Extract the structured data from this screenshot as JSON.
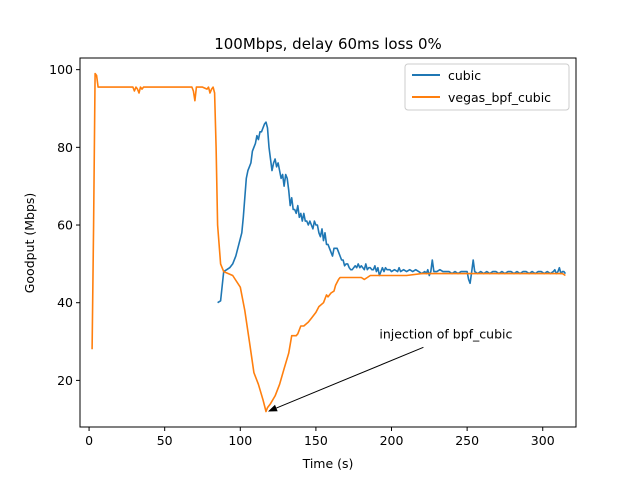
{
  "chart_data": {
    "type": "line",
    "title": "100Mbps, delay 60ms loss 0%",
    "xlabel": "Time (s)",
    "ylabel": "Goodput (Mbps)",
    "xlim": [
      -6,
      322
    ],
    "ylim": [
      8,
      103
    ],
    "xticks": [
      0,
      50,
      100,
      150,
      200,
      250,
      300
    ],
    "yticks": [
      20,
      40,
      60,
      80,
      100
    ],
    "grid": false,
    "legend_position": "upper right",
    "colors": {
      "cubic": "#1f77b4",
      "vegas_bpf_cubic": "#ff7f0e"
    },
    "series": [
      {
        "name": "cubic",
        "points": [
          [
            85,
            40
          ],
          [
            87,
            40.5
          ],
          [
            89,
            48
          ],
          [
            91,
            48.5
          ],
          [
            93,
            49
          ],
          [
            95,
            50
          ],
          [
            97,
            52
          ],
          [
            99,
            55
          ],
          [
            101,
            58
          ],
          [
            102,
            62
          ],
          [
            103,
            67
          ],
          [
            104,
            72
          ],
          [
            105,
            74
          ],
          [
            106,
            75
          ],
          [
            107,
            76
          ],
          [
            108,
            79
          ],
          [
            109,
            80
          ],
          [
            110,
            81
          ],
          [
            111,
            83
          ],
          [
            112,
            82
          ],
          [
            113,
            84
          ],
          [
            114,
            84
          ],
          [
            115,
            85
          ],
          [
            116,
            86
          ],
          [
            117,
            86.5
          ],
          [
            118,
            85
          ],
          [
            119,
            80
          ],
          [
            120,
            77
          ],
          [
            121,
            74
          ],
          [
            122,
            76
          ],
          [
            123,
            77
          ],
          [
            124,
            75
          ],
          [
            125,
            76
          ],
          [
            126,
            74
          ],
          [
            127,
            72
          ],
          [
            128,
            73
          ],
          [
            129,
            70
          ],
          [
            130,
            73
          ],
          [
            131,
            72
          ],
          [
            132,
            69
          ],
          [
            133,
            65
          ],
          [
            134,
            67
          ],
          [
            135,
            64
          ],
          [
            136,
            64
          ],
          [
            137,
            63
          ],
          [
            138,
            65
          ],
          [
            139,
            62
          ],
          [
            140,
            63
          ],
          [
            141,
            61
          ],
          [
            142,
            63
          ],
          [
            143,
            61
          ],
          [
            144,
            61
          ],
          [
            145,
            60
          ],
          [
            146,
            61
          ],
          [
            147,
            60
          ],
          [
            148,
            59
          ],
          [
            149,
            61
          ],
          [
            150,
            60
          ],
          [
            151,
            60
          ],
          [
            152,
            58
          ],
          [
            153,
            57
          ],
          [
            154,
            59
          ],
          [
            155,
            56
          ],
          [
            156,
            58
          ],
          [
            157,
            55
          ],
          [
            158,
            55
          ],
          [
            159,
            54
          ],
          [
            160,
            53
          ],
          [
            161,
            52
          ],
          [
            162,
            54
          ],
          [
            163,
            54
          ],
          [
            164,
            54
          ],
          [
            165,
            53
          ],
          [
            166,
            52
          ],
          [
            167,
            51
          ],
          [
            168,
            51
          ],
          [
            169,
            49.5
          ],
          [
            170,
            50
          ],
          [
            171,
            50
          ],
          [
            172,
            49
          ],
          [
            173,
            48.5
          ],
          [
            174,
            48.5
          ],
          [
            175,
            49
          ],
          [
            176,
            49.5
          ],
          [
            177,
            49
          ],
          [
            178,
            50
          ],
          [
            179,
            49
          ],
          [
            180,
            49.5
          ],
          [
            181,
            49
          ],
          [
            182,
            48.5
          ],
          [
            183,
            50
          ],
          [
            184,
            48.5
          ],
          [
            185,
            49
          ],
          [
            186,
            49
          ],
          [
            187,
            48.5
          ],
          [
            188,
            48.5
          ],
          [
            189,
            49.5
          ],
          [
            190,
            48
          ],
          [
            191,
            49
          ],
          [
            192,
            47
          ],
          [
            193,
            48
          ],
          [
            194,
            49
          ],
          [
            195,
            48
          ],
          [
            196,
            49
          ],
          [
            197,
            48.5
          ],
          [
            198,
            48.5
          ],
          [
            199,
            48.5
          ],
          [
            200,
            48
          ],
          [
            202,
            48.5
          ],
          [
            204,
            48
          ],
          [
            205,
            49
          ],
          [
            206,
            48
          ],
          [
            208,
            48.5
          ],
          [
            210,
            48
          ],
          [
            212,
            48.5
          ],
          [
            214,
            48
          ],
          [
            216,
            48.5
          ],
          [
            218,
            48
          ],
          [
            220,
            47.5
          ],
          [
            222,
            48
          ],
          [
            223,
            47.5
          ],
          [
            224,
            48.5
          ],
          [
            225,
            47
          ],
          [
            226,
            48
          ],
          [
            227,
            51
          ],
          [
            228,
            48
          ],
          [
            230,
            48
          ],
          [
            232,
            48.5
          ],
          [
            234,
            48
          ],
          [
            236,
            48
          ],
          [
            238,
            48
          ],
          [
            240,
            47.5
          ],
          [
            242,
            48
          ],
          [
            244,
            47.5
          ],
          [
            246,
            48
          ],
          [
            248,
            48
          ],
          [
            250,
            48
          ],
          [
            251,
            46
          ],
          [
            252,
            45
          ],
          [
            253,
            48
          ],
          [
            254,
            51
          ],
          [
            255,
            48
          ],
          [
            257,
            47.5
          ],
          [
            259,
            48
          ],
          [
            261,
            47.5
          ],
          [
            263,
            48
          ],
          [
            265,
            47.5
          ],
          [
            267,
            48
          ],
          [
            269,
            48
          ],
          [
            271,
            47.5
          ],
          [
            273,
            48
          ],
          [
            275,
            47.5
          ],
          [
            277,
            48
          ],
          [
            279,
            48
          ],
          [
            281,
            47.5
          ],
          [
            283,
            48
          ],
          [
            285,
            47.5
          ],
          [
            287,
            48
          ],
          [
            289,
            48
          ],
          [
            291,
            47.5
          ],
          [
            293,
            48
          ],
          [
            295,
            47.5
          ],
          [
            297,
            48
          ],
          [
            299,
            48
          ],
          [
            301,
            47.5
          ],
          [
            303,
            48
          ],
          [
            305,
            47.5
          ],
          [
            307,
            48
          ],
          [
            308,
            48.5
          ],
          [
            309,
            47.5
          ],
          [
            310,
            48
          ],
          [
            311,
            49
          ],
          [
            312,
            47.5
          ],
          [
            313,
            48
          ],
          [
            314,
            48
          ],
          [
            315,
            47.5
          ]
        ]
      },
      {
        "name": "vegas_bpf_cubic",
        "points": [
          [
            2,
            28
          ],
          [
            3,
            60
          ],
          [
            4,
            99
          ],
          [
            5,
            98.5
          ],
          [
            6,
            95.5
          ],
          [
            10,
            95.5
          ],
          [
            20,
            95.5
          ],
          [
            25,
            95.5
          ],
          [
            29,
            95.5
          ],
          [
            30,
            94.5
          ],
          [
            31,
            95.5
          ],
          [
            32,
            95
          ],
          [
            33,
            94
          ],
          [
            34,
            95.5
          ],
          [
            35,
            95
          ],
          [
            36,
            95.5
          ],
          [
            40,
            95.5
          ],
          [
            50,
            95.5
          ],
          [
            60,
            95.5
          ],
          [
            68,
            95.5
          ],
          [
            69,
            94.5
          ],
          [
            70,
            92
          ],
          [
            71,
            95.5
          ],
          [
            75,
            95.5
          ],
          [
            78,
            95
          ],
          [
            79,
            95.5
          ],
          [
            80,
            94
          ],
          [
            81,
            95
          ],
          [
            82,
            95.5
          ],
          [
            83,
            94
          ],
          [
            84,
            80
          ],
          [
            85,
            60
          ],
          [
            86,
            55
          ],
          [
            87,
            50
          ],
          [
            88,
            49
          ],
          [
            89,
            48
          ],
          [
            95,
            47
          ],
          [
            100,
            44
          ],
          [
            103,
            38
          ],
          [
            106,
            30
          ],
          [
            109,
            22
          ],
          [
            112,
            19
          ],
          [
            115,
            15
          ],
          [
            117,
            12
          ],
          [
            118,
            13
          ],
          [
            120,
            14
          ],
          [
            123,
            16
          ],
          [
            126,
            19
          ],
          [
            129,
            23
          ],
          [
            132,
            27
          ],
          [
            134,
            31.5
          ],
          [
            137,
            31.5
          ],
          [
            138,
            32
          ],
          [
            140,
            34
          ],
          [
            142,
            34
          ],
          [
            145,
            35
          ],
          [
            147,
            36
          ],
          [
            150,
            37.5
          ],
          [
            152,
            39
          ],
          [
            155,
            40
          ],
          [
            157,
            42
          ],
          [
            158,
            41.5
          ],
          [
            160,
            42.5
          ],
          [
            162,
            43
          ],
          [
            163,
            44.5
          ],
          [
            165,
            46
          ],
          [
            166,
            46.5
          ],
          [
            170,
            46.5
          ],
          [
            175,
            46.5
          ],
          [
            180,
            46.5
          ],
          [
            182,
            46
          ],
          [
            184,
            46.5
          ],
          [
            186,
            47
          ],
          [
            190,
            47
          ],
          [
            195,
            47
          ],
          [
            200,
            47
          ],
          [
            210,
            47
          ],
          [
            220,
            47.5
          ],
          [
            230,
            47.5
          ],
          [
            240,
            47.5
          ],
          [
            250,
            47.5
          ],
          [
            260,
            47.5
          ],
          [
            270,
            47.5
          ],
          [
            280,
            47.5
          ],
          [
            290,
            47.5
          ],
          [
            300,
            47.5
          ],
          [
            310,
            47.5
          ],
          [
            313,
            47.5
          ],
          [
            315,
            47
          ]
        ]
      }
    ],
    "annotations": [
      {
        "text": "injection of bpf_cubic",
        "xy": [
          117,
          12
        ],
        "xytext": [
          192,
          28
        ]
      }
    ]
  }
}
